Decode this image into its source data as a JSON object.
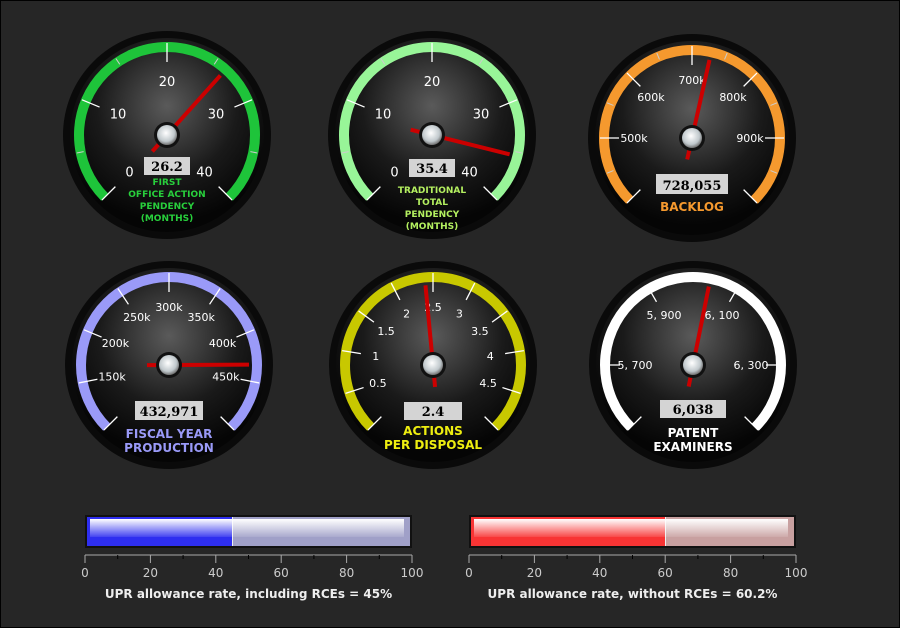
{
  "gauges": [
    {
      "id": "first-office-action-pendency",
      "min": 0,
      "max": 40,
      "ticks": [
        0,
        10,
        20,
        30,
        40
      ],
      "labels": [
        "0",
        "10",
        "20",
        "30",
        "40"
      ],
      "label_values": [
        0,
        10,
        20,
        30,
        40
      ],
      "minor": [
        5,
        15,
        25,
        35
      ],
      "value": 26.2,
      "value_label": "26.2",
      "title": [
        "FIRST",
        "OFFICE ACTION",
        "PENDENCY",
        "(MONTHS)"
      ],
      "arc_color": "#1ec43a",
      "title_color": "#28d03c"
    },
    {
      "id": "traditional-total-pendency",
      "min": 0,
      "max": 40,
      "ticks": [
        0,
        10,
        20,
        30,
        40
      ],
      "labels": [
        "0",
        "10",
        "20",
        "30",
        "40"
      ],
      "label_values": [
        0,
        10,
        20,
        30,
        40
      ],
      "minor": [
        5,
        15,
        25,
        35
      ],
      "value": 35.4,
      "value_label": "35.4",
      "title": [
        "TRADITIONAL",
        "TOTAL",
        "PENDENCY",
        "(MONTHS)"
      ],
      "arc_color": "#98f598",
      "title_color": "#b4f060"
    },
    {
      "id": "backlog",
      "min": 400000,
      "max": 1000000,
      "ticks": [
        400000,
        500000,
        600000,
        700000,
        800000,
        900000,
        1000000
      ],
      "labels": [
        "500k",
        "600k",
        "700k",
        "800k",
        "900k"
      ],
      "label_values": [
        500000,
        600000,
        700000,
        800000,
        900000
      ],
      "minor": [
        450000,
        550000,
        650000,
        750000,
        850000,
        950000
      ],
      "value": 728055,
      "value_label": "728,055",
      "title": [
        "BACKLOG"
      ],
      "arc_color": "#f5992e",
      "title_color": "#f5992e"
    },
    {
      "id": "fiscal-year-production",
      "min": 100000,
      "max": 500000,
      "ticks": [
        100000,
        150000,
        200000,
        250000,
        300000,
        350000,
        400000,
        450000,
        500000
      ],
      "labels": [
        "150k",
        "200k",
        "250k",
        "300k",
        "350k",
        "400k",
        "450k"
      ],
      "label_values": [
        150000,
        200000,
        250000,
        300000,
        350000,
        400000,
        450000
      ],
      "minor": [],
      "value": 432971,
      "value_label": "432,971",
      "title": [
        "FISCAL YEAR",
        "PRODUCTION"
      ],
      "arc_color": "#9a9af8",
      "title_color": "#9a9af8"
    },
    {
      "id": "actions-per-disposal",
      "min": 0,
      "max": 5,
      "ticks": [
        0,
        0.5,
        1,
        1.5,
        2,
        2.5,
        3,
        3.5,
        4,
        4.5,
        5
      ],
      "labels": [
        "0.5",
        "1",
        "1.5",
        "2",
        "2.5",
        "3",
        "3.5",
        "4",
        "4.5"
      ],
      "label_values": [
        0.5,
        1,
        1.5,
        2,
        2.5,
        3,
        3.5,
        4,
        4.5
      ],
      "minor": [],
      "value": 2.4,
      "value_label": "2.4",
      "title": [
        "ACTIONS",
        "PER DISPOSAL"
      ],
      "arc_color": "#c8c800",
      "title_color": "#eeee10"
    },
    {
      "id": "patent-examiners",
      "min": 5550,
      "max": 6450,
      "ticks": [
        5550,
        5700,
        5900,
        6100,
        6300,
        6450
      ],
      "labels": [
        "5, 700",
        "5, 900",
        "6, 100",
        "6, 300"
      ],
      "label_values": [
        5700,
        5900,
        6100,
        6300
      ],
      "minor": [],
      "value": 6038,
      "value_label": "6,038",
      "title": [
        "PATENT",
        "EXAMINERS"
      ],
      "arc_color": "#ffffff",
      "title_color": "#ffffff"
    }
  ],
  "bars": [
    {
      "id": "upr-including-rces",
      "value": 45,
      "min": 0,
      "max": 100,
      "tick_labels": [
        "0",
        "20",
        "40",
        "60",
        "80",
        "100"
      ],
      "caption": "UPR allowance rate, including RCEs = 45%",
      "fill_color": "#2e2ef0",
      "track_color": "#a0a0c8"
    },
    {
      "id": "upr-without-rces",
      "value": 60.2,
      "min": 0,
      "max": 100,
      "tick_labels": [
        "0",
        "20",
        "40",
        "60",
        "80",
        "100"
      ],
      "caption": "UPR allowance rate, without RCEs = 60.2%",
      "fill_color": "#f83434",
      "track_color": "#c8a0a0"
    }
  ]
}
